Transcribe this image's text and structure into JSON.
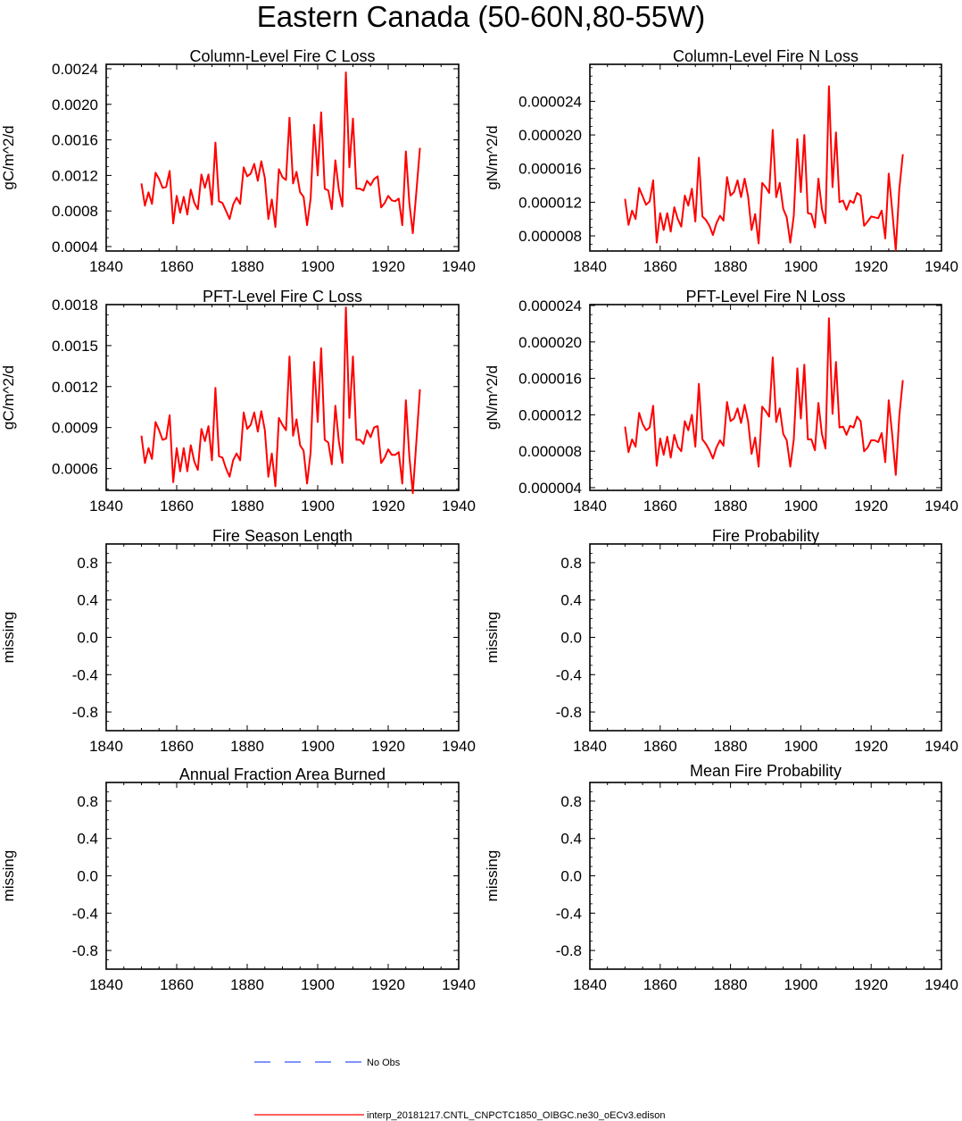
{
  "figure": {
    "title": "Eastern Canada (50-60N,80-55W)",
    "legend": [
      {
        "label": "No Obs",
        "color": "#3355ff",
        "style": "dashed"
      },
      {
        "label": "interp_20181217.CNTL_CNPCTC1850_OIBGC.ne30_oECv3.edison",
        "color": "#ff0000",
        "style": "solid"
      }
    ]
  },
  "chart_data": [
    {
      "type": "line",
      "title": "Column-Level Fire C Loss",
      "ylabel": "gC/m^2/d",
      "xlim": [
        1840,
        1940
      ],
      "ylim": [
        0.00035,
        0.00245
      ],
      "xticks": [
        1840,
        1860,
        1880,
        1900,
        1920,
        1940
      ],
      "yticks": [
        0.0004,
        0.0008,
        0.0012,
        0.0016,
        0.002,
        0.0024
      ],
      "ytick_labels": [
        "0.0004",
        "0.0008",
        "0.0012",
        "0.0016",
        "0.0020",
        "0.0024"
      ],
      "series": [
        {
          "name": "interp_20181217.CNTL_CNPCTC1850_OIBGC.ne30_oECv3.edison",
          "color": "#ff0000",
          "x_start": 1850,
          "values": [
            0.00111,
            0.00086,
            0.00101,
            0.00088,
            0.00123,
            0.00116,
            0.00106,
            0.00107,
            0.00125,
            0.00066,
            0.00097,
            0.00078,
            0.00096,
            0.00076,
            0.00104,
            0.00089,
            0.00082,
            0.00121,
            0.00106,
            0.00121,
            0.00087,
            0.00157,
            0.00091,
            0.00089,
            0.0008,
            0.00071,
            0.00087,
            0.00095,
            0.00088,
            0.00129,
            0.00119,
            0.00122,
            0.00133,
            0.00114,
            0.00136,
            0.00117,
            0.00071,
            0.00093,
            0.00062,
            0.00127,
            0.00118,
            0.00115,
            0.00185,
            0.00111,
            0.00124,
            0.00101,
            0.00096,
            0.00064,
            0.00094,
            0.00177,
            0.0012,
            0.00191,
            0.00105,
            0.00103,
            0.00082,
            0.00137,
            0.00104,
            0.00085,
            0.00236,
            0.00129,
            0.00184,
            0.00105,
            0.00105,
            0.00103,
            0.00114,
            0.00109,
            0.00116,
            0.00119,
            0.00084,
            0.00089,
            0.00097,
            0.00092,
            0.00091,
            0.00094,
            0.00064,
            0.00147,
            0.00089,
            0.00055,
            0.00102,
            0.00151
          ]
        }
      ]
    },
    {
      "type": "line",
      "title": "Column-Level Fire N Loss",
      "ylabel": "gN/m^2/d",
      "xlim": [
        1840,
        1940
      ],
      "ylim": [
        6.2e-06,
        2.84e-05
      ],
      "xticks": [
        1840,
        1860,
        1880,
        1900,
        1920,
        1940
      ],
      "yticks": [
        8e-06,
        1.2e-05,
        1.6e-05,
        2e-05,
        2.4e-05
      ],
      "ytick_labels": [
        "0.000008",
        "0.000012",
        "0.000016",
        "0.000020",
        "0.000024"
      ],
      "series": [
        {
          "name": "interp_20181217.CNTL_CNPCTC1850_OIBGC.ne30_oECv3.edison",
          "color": "#ff0000",
          "x_start": 1850,
          "values": [
            1.24e-05,
            9.3e-06,
            1.1e-05,
            1e-05,
            1.37e-05,
            1.27e-05,
            1.17e-05,
            1.21e-05,
            1.46e-05,
            7.2e-06,
            1.07e-05,
            8.7e-06,
            1.07e-05,
            8.5e-06,
            1.14e-05,
            1e-05,
            9.1e-06,
            1.28e-05,
            1.16e-05,
            1.36e-05,
            9.7e-06,
            1.73e-05,
            1.03e-05,
            9.9e-06,
            9.2e-06,
            8.1e-06,
            9.5e-06,
            1.04e-05,
            9.8e-06,
            1.5e-05,
            1.28e-05,
            1.32e-05,
            1.46e-05,
            1.26e-05,
            1.48e-05,
            1.27e-05,
            8.7e-06,
            1.06e-05,
            7.1e-06,
            1.43e-05,
            1.38e-05,
            1.31e-05,
            2.06e-05,
            1.26e-05,
            1.43e-05,
            1.12e-05,
            1.02e-05,
            7.2e-06,
            1.04e-05,
            1.95e-05,
            1.32e-05,
            2e-05,
            1.07e-05,
            1.06e-05,
            9e-06,
            1.48e-05,
            1.12e-05,
            9.5e-06,
            2.58e-05,
            1.38e-05,
            2.03e-05,
            1.2e-05,
            1.22e-05,
            1.11e-05,
            1.22e-05,
            1.19e-05,
            1.31e-05,
            1.28e-05,
            9.2e-06,
            9.7e-06,
            1.03e-05,
            1.02e-05,
            1.01e-05,
            1.1e-05,
            7.7e-06,
            1.54e-05,
            1.1e-05,
            6.3e-06,
            1.35e-05,
            1.77e-05
          ]
        }
      ]
    },
    {
      "type": "line",
      "title": "PFT-Level Fire C Loss",
      "ylabel": "gC/m^2/d",
      "xlim": [
        1840,
        1940
      ],
      "ylim": [
        0.00044,
        0.0018
      ],
      "xticks": [
        1840,
        1860,
        1880,
        1900,
        1920,
        1940
      ],
      "yticks": [
        0.0006,
        0.0009,
        0.0012,
        0.0015,
        0.0018
      ],
      "ytick_labels": [
        "0.0006",
        "0.0009",
        "0.0012",
        "0.0015",
        "0.0018"
      ],
      "series": [
        {
          "name": "interp_20181217.CNTL_CNPCTC1850_OIBGC.ne30_oECv3.edison",
          "color": "#ff0000",
          "x_start": 1850,
          "values": [
            0.00084,
            0.00064,
            0.00075,
            0.00067,
            0.00094,
            0.00088,
            0.00081,
            0.00082,
            0.00099,
            0.0005,
            0.00075,
            0.00058,
            0.00075,
            0.00058,
            0.00077,
            0.00065,
            0.00059,
            0.00089,
            0.0008,
            0.00091,
            0.00066,
            0.00119,
            0.00069,
            0.00068,
            0.0006,
            0.00054,
            0.00066,
            0.00071,
            0.00066,
            0.00101,
            0.00089,
            0.00092,
            0.00101,
            0.00087,
            0.00102,
            0.00088,
            0.00054,
            0.00071,
            0.00047,
            0.00097,
            0.00092,
            0.00088,
            0.00142,
            0.00084,
            0.00096,
            0.00077,
            0.00073,
            0.00049,
            0.00072,
            0.00138,
            0.00094,
            0.00148,
            0.00081,
            0.00079,
            0.00063,
            0.00106,
            0.0008,
            0.00064,
            0.00178,
            0.00097,
            0.00142,
            0.00081,
            0.00081,
            0.00078,
            0.00088,
            0.00083,
            0.0009,
            0.00091,
            0.00064,
            0.00068,
            0.00074,
            0.0007,
            0.0007,
            0.00072,
            0.00049,
            0.0011,
            0.00069,
            0.00042,
            0.0008,
            0.00118
          ]
        }
      ]
    },
    {
      "type": "line",
      "title": "PFT-Level Fire N Loss",
      "ylabel": "gN/m^2/d",
      "xlim": [
        1840,
        1940
      ],
      "ylim": [
        3.7e-06,
        2.41e-05
      ],
      "xticks": [
        1840,
        1860,
        1880,
        1900,
        1920,
        1940
      ],
      "yticks": [
        4e-06,
        8e-06,
        1.2e-05,
        1.6e-05,
        2e-05,
        2.4e-05
      ],
      "ytick_labels": [
        "0.000004",
        "0.000008",
        "0.000012",
        "0.000016",
        "0.000020",
        "0.000024"
      ],
      "series": [
        {
          "name": "interp_20181217.CNTL_CNPCTC1850_OIBGC.ne30_oECv3.edison",
          "color": "#ff0000",
          "x_start": 1850,
          "values": [
            1.07e-05,
            7.9e-06,
            9.3e-06,
            8.5e-06,
            1.22e-05,
            1.1e-05,
            1.03e-05,
            1.06e-05,
            1.3e-05,
            6.4e-06,
            9.4e-06,
            7.6e-06,
            9.6e-06,
            7.3e-06,
            9.8e-06,
            8.5e-06,
            8e-06,
            1.13e-05,
            1.03e-05,
            1.2e-05,
            8.5e-06,
            1.54e-05,
            9.3e-06,
            8.8e-06,
            8.1e-06,
            7.2e-06,
            8.4e-06,
            9.2e-06,
            8.6e-06,
            1.34e-05,
            1.13e-05,
            1.16e-05,
            1.27e-05,
            1.11e-05,
            1.31e-05,
            1.13e-05,
            7.7e-06,
            9.5e-06,
            6.3e-06,
            1.29e-05,
            1.24e-05,
            1.18e-05,
            1.83e-05,
            1.12e-05,
            1.27e-05,
            9.9e-06,
            9.2e-06,
            6.3e-06,
            9.3e-06,
            1.71e-05,
            1.16e-05,
            1.75e-05,
            9.3e-06,
            9.3e-06,
            8.1e-06,
            1.33e-05,
            9.9e-06,
            8.3e-06,
            2.26e-05,
            1.21e-05,
            1.78e-05,
            1.06e-05,
            1.07e-05,
            9.8e-06,
            1.08e-05,
            1.06e-05,
            1.18e-05,
            1.13e-05,
            8e-06,
            8.4e-06,
            9.2e-06,
            9.2e-06,
            9e-06,
            1e-05,
            6.8e-06,
            1.36e-05,
            9.8e-06,
            5.4e-06,
            1.18e-05,
            1.58e-05
          ]
        }
      ]
    },
    {
      "type": "line",
      "title": "Fire Season Length",
      "ylabel": "missing",
      "xlim": [
        1840,
        1940
      ],
      "ylim": [
        -1.0,
        1.0
      ],
      "xticks": [
        1840,
        1860,
        1880,
        1900,
        1920,
        1940
      ],
      "yticks": [
        -0.8,
        -0.4,
        0.0,
        0.4,
        0.8
      ],
      "ytick_labels": [
        "-0.8",
        "-0.4",
        "0.0",
        "0.4",
        "0.8"
      ],
      "series": []
    },
    {
      "type": "line",
      "title": "Fire Probability",
      "ylabel": "missing",
      "xlim": [
        1840,
        1940
      ],
      "ylim": [
        -1.0,
        1.0
      ],
      "xticks": [
        1840,
        1860,
        1880,
        1900,
        1920,
        1940
      ],
      "yticks": [
        -0.8,
        -0.4,
        0.0,
        0.4,
        0.8
      ],
      "ytick_labels": [
        "-0.8",
        "-0.4",
        "0.0",
        "0.4",
        "0.8"
      ],
      "series": []
    },
    {
      "type": "line",
      "title": "Annual Fraction Area Burned",
      "ylabel": "missing",
      "xlim": [
        1840,
        1940
      ],
      "ylim": [
        -1.0,
        1.0
      ],
      "xticks": [
        1840,
        1860,
        1880,
        1900,
        1920,
        1940
      ],
      "yticks": [
        -0.8,
        -0.4,
        0.0,
        0.4,
        0.8
      ],
      "ytick_labels": [
        "-0.8",
        "-0.4",
        "0.0",
        "0.4",
        "0.8"
      ],
      "series": []
    },
    {
      "type": "line",
      "title": "Mean Fire Probability",
      "ylabel": "missing",
      "xlim": [
        1840,
        1940
      ],
      "ylim": [
        -1.0,
        1.0
      ],
      "xticks": [
        1840,
        1860,
        1880,
        1900,
        1920,
        1940
      ],
      "yticks": [
        -0.8,
        -0.4,
        0.0,
        0.4,
        0.8
      ],
      "ytick_labels": [
        "-0.8",
        "-0.4",
        "0.0",
        "0.4",
        "0.8"
      ],
      "series": []
    }
  ]
}
